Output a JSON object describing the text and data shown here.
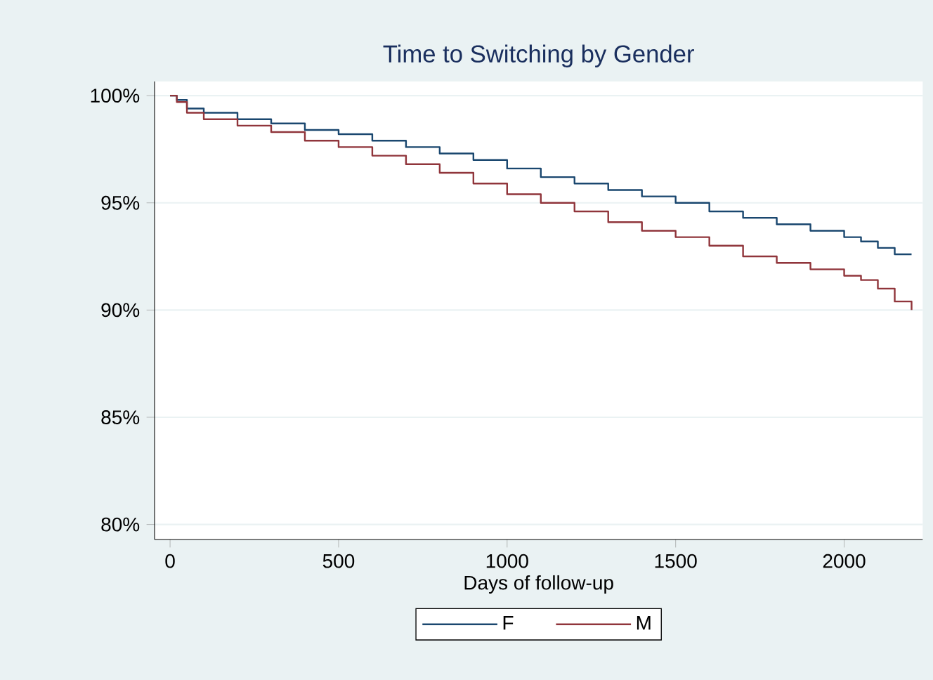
{
  "chart_data": {
    "type": "step",
    "title": "Time to Switching by Gender",
    "xlabel": "Days of follow-up",
    "xlim": [
      -46,
      2233
    ],
    "xticks": [
      0,
      500,
      1000,
      1500,
      2000
    ],
    "ylim": [
      79.3,
      100.66
    ],
    "yticks": [
      {
        "value": 80,
        "label": "80%"
      },
      {
        "value": 85,
        "label": "85%"
      },
      {
        "value": 90,
        "label": "90%"
      },
      {
        "value": 95,
        "label": "95%"
      },
      {
        "value": 100,
        "label": "100%"
      }
    ],
    "grid": "y",
    "legend": "bottom",
    "series": [
      {
        "name": "F",
        "color": "#1a476f",
        "x": [
          0,
          20,
          50,
          100,
          200,
          300,
          400,
          500,
          600,
          700,
          800,
          900,
          1000,
          1100,
          1200,
          1300,
          1400,
          1500,
          1600,
          1700,
          1800,
          1900,
          2000,
          2050,
          2100,
          2150,
          2200
        ],
        "values": [
          100,
          99.8,
          99.4,
          99.2,
          98.9,
          98.7,
          98.4,
          98.2,
          97.9,
          97.6,
          97.3,
          97.0,
          96.6,
          96.2,
          95.9,
          95.6,
          95.3,
          95.0,
          94.6,
          94.3,
          94.0,
          93.7,
          93.4,
          93.2,
          92.9,
          92.6,
          92.6
        ]
      },
      {
        "name": "M",
        "color": "#90353b",
        "x": [
          0,
          20,
          50,
          100,
          200,
          300,
          400,
          500,
          600,
          700,
          800,
          900,
          1000,
          1100,
          1200,
          1300,
          1400,
          1500,
          1600,
          1700,
          1800,
          1900,
          2000,
          2050,
          2100,
          2150,
          2200
        ],
        "values": [
          100,
          99.7,
          99.2,
          98.9,
          98.6,
          98.3,
          97.9,
          97.6,
          97.2,
          96.8,
          96.4,
          95.9,
          95.4,
          95.0,
          94.6,
          94.1,
          93.7,
          93.4,
          93.0,
          92.5,
          92.2,
          91.9,
          91.6,
          91.4,
          91.0,
          90.4,
          90.0
        ]
      }
    ]
  }
}
